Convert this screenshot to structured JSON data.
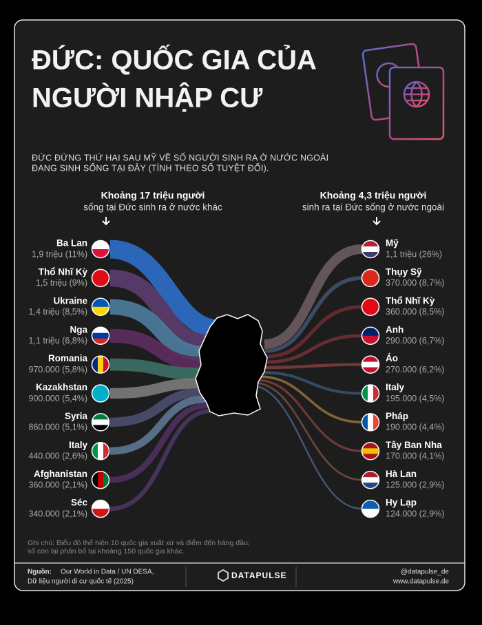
{
  "header": {
    "title_lines": [
      "ĐỨC: QUỐC GIA CỦA",
      "NGƯỜI NHẬP CƯ"
    ],
    "subtitle_lines": [
      "ĐỨC ĐỨNG THỨ HAI SAU MỸ VỀ SỐ NGƯỜI SINH RA Ở NƯỚC NGOÀI",
      "ĐANG SINH SỐNG TẠI ĐÂY (TÍNH THEO SỐ TUYỆT ĐỐI)."
    ]
  },
  "left": {
    "heading": "Khoảng 17 triệu người",
    "subheading": "sống tại Đức sinh ra ở nước khác",
    "rows": [
      {
        "name": "Ba Lan",
        "value": "1,9 triệu (11%)"
      },
      {
        "name": "Thổ Nhĩ Kỳ",
        "value": "1,5 triệu (9%)"
      },
      {
        "name": "Ukraine",
        "value": "1,4 triệu (8,5%)"
      },
      {
        "name": "Nga",
        "value": "1,1 triệu (6,8%)"
      },
      {
        "name": "Romania",
        "value": "970.000 (5,8%)"
      },
      {
        "name": "Kazakhstan",
        "value": "900.000 (5,4%)"
      },
      {
        "name": "Syria",
        "value": "860.000 (5,1%)"
      },
      {
        "name": "Italy",
        "value": "440.000 (2,6%)"
      },
      {
        "name": "Afghanistan",
        "value": "360.000 (2,1%)"
      },
      {
        "name": "Séc",
        "value": "340.000 (2,1%)"
      }
    ]
  },
  "right": {
    "heading": "Khoảng 4,3 triệu người",
    "subheading": "sinh ra tại Đức sống ở nước ngoài",
    "rows": [
      {
        "name": "Mỹ",
        "value": "1,1 triệu (26%)"
      },
      {
        "name": "Thụy Sỹ",
        "value": "370.000 (8,7%)"
      },
      {
        "name": "Thổ Nhĩ Kỳ",
        "value": "360.000 (8,5%)"
      },
      {
        "name": "Anh",
        "value": "290.000 (6,7%)"
      },
      {
        "name": "Áo",
        "value": "270.000 (6,2%)"
      },
      {
        "name": "Italy",
        "value": "195.000 (4,5%)"
      },
      {
        "name": "Pháp",
        "value": "190.000 (4,4%)"
      },
      {
        "name": "Tây Ban Nha",
        "value": "170.000 (4,1%)"
      },
      {
        "name": "Hà Lan",
        "value": "125.000 (2,9%)"
      },
      {
        "name": "Hy Lạp",
        "value": "124.000 (2,9%)"
      }
    ]
  },
  "note_lines": [
    "Ghi chú: Biểu đồ thể hiện 10 quốc gia xuất xứ và điểm đến hàng đầu;",
    "số còn lại phân bổ tại khoảng 150 quốc gia khác."
  ],
  "footer": {
    "source_label": "Nguồn:",
    "source_lines": [
      "Our World in Data / UN DESA,",
      "Dữ liệu người di cư quốc tế (2025)"
    ],
    "brand": "DATAPULSE",
    "handle": "@datapulse_de",
    "website": "www.datapulse.de"
  }
}
